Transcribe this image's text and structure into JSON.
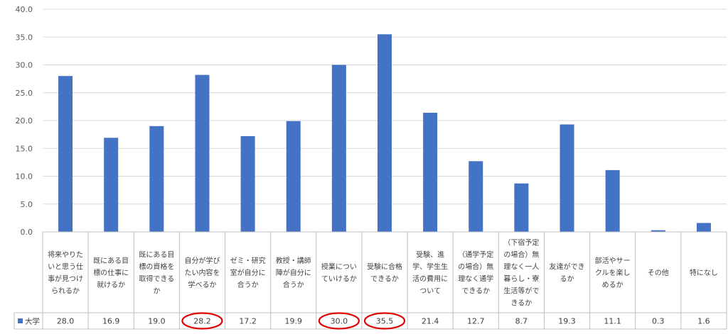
{
  "chart_data": {
    "type": "bar",
    "title": "",
    "xlabel": "",
    "ylabel": "",
    "ylim": [
      0,
      40
    ],
    "yticks": [
      "0.0",
      "5.0",
      "10.0",
      "15.0",
      "20.0",
      "25.0",
      "30.0",
      "35.0",
      "40.0"
    ],
    "grid": true,
    "legend_position": "data-table",
    "categories": [
      "将来やりたいと思う仕事が見つけられるか",
      "既にある目標の仕事に就けるか",
      "既にある目標の資格を取得できるか",
      "自分が学びたい内容を学べるか",
      "ゼミ・研究室が自分に合うか",
      "教授・講師陣が自分に合うか",
      "授業についていけるか",
      "受験に合格できるか",
      "受験、進学、学生生活の費用について",
      "（通学予定の場合）無理なく通学できるか",
      "（下宿予定の場合）無理なく一人暮らし・寮生活等ができるか",
      "友達ができるか",
      "部活やサークルを楽しめるか",
      "その他",
      "特になし"
    ],
    "category_lines": [
      [
        "将来やりた",
        "いと思う仕",
        "事が見つけ",
        "られるか"
      ],
      [
        "既にある目",
        "標の仕事に",
        "就けるか"
      ],
      [
        "既にある目",
        "標の資格を",
        "取得できる",
        "か"
      ],
      [
        "自分が学び",
        "たい内容を",
        "学べるか"
      ],
      [
        "ゼミ・研究",
        "室が自分に",
        "合うか"
      ],
      [
        "教授・講師",
        "陣が自分に",
        "合うか"
      ],
      [
        "授業につい",
        "ていけるか"
      ],
      [
        "受験に合格",
        "できるか"
      ],
      [
        "受験、進",
        "学、学生生",
        "活の費用に",
        "ついて"
      ],
      [
        "（通学予定",
        "の場合）無",
        "理なく通学",
        "できるか"
      ],
      [
        "（下宿予定",
        "の場合）無",
        "理なく一人",
        "暮らし・寮",
        "生活等がで",
        "きるか"
      ],
      [
        "友達ができ",
        "るか"
      ],
      [
        "部活やサー",
        "クルを楽し",
        "めるか"
      ],
      [
        "その他"
      ],
      [
        "特になし"
      ]
    ],
    "series": [
      {
        "name": "大学",
        "color": "#4472C4",
        "values": [
          28.0,
          16.9,
          19.0,
          28.2,
          17.2,
          19.9,
          30.0,
          35.5,
          21.4,
          12.7,
          8.7,
          19.3,
          11.1,
          0.3,
          1.6
        ],
        "labels": [
          "28.0",
          "16.9",
          "19.0",
          "28.2",
          "17.2",
          "19.9",
          "30.0",
          "35.5",
          "21.4",
          "12.7",
          "8.7",
          "19.3",
          "11.1",
          "0.3",
          "1.6"
        ]
      }
    ],
    "highlighted_categories": [
      3,
      6,
      7
    ],
    "highlight_color": "#E00000"
  }
}
